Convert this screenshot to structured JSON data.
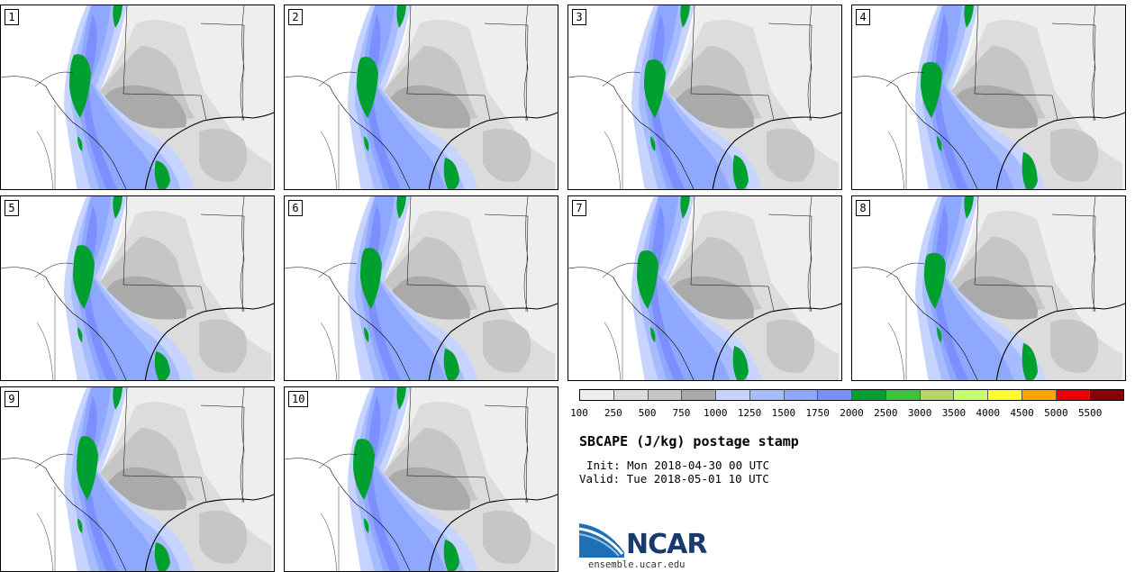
{
  "figure": {
    "title": "SBCAPE (J/kg) postage stamp",
    "init": "Init: Mon 2018-04-30 00 UTC",
    "valid": "Valid: Tue 2018-05-01 10 UTC"
  },
  "members": [
    "1",
    "2",
    "3",
    "4",
    "5",
    "6",
    "7",
    "8",
    "9",
    "10"
  ],
  "colorbar": {
    "colors": [
      "#eeeeee",
      "#dcdcdc",
      "#c6c6c6",
      "#aaaaaa",
      "#c6d4ff",
      "#a7bcff",
      "#8fa8ff",
      "#7b8fff",
      "#00a030",
      "#3ec23e",
      "#b7d46a",
      "#c6ff6e",
      "#ffff30",
      "#ffa500",
      "#ee0000",
      "#8a0000"
    ],
    "ticks": [
      "100",
      "250",
      "500",
      "750",
      "1000",
      "1250",
      "1500",
      "1750",
      "2000",
      "2500",
      "3000",
      "3500",
      "4000",
      "4500",
      "5000",
      "5500"
    ]
  },
  "logo": {
    "text": "NCAR",
    "url": "ensemble.ucar.edu"
  }
}
